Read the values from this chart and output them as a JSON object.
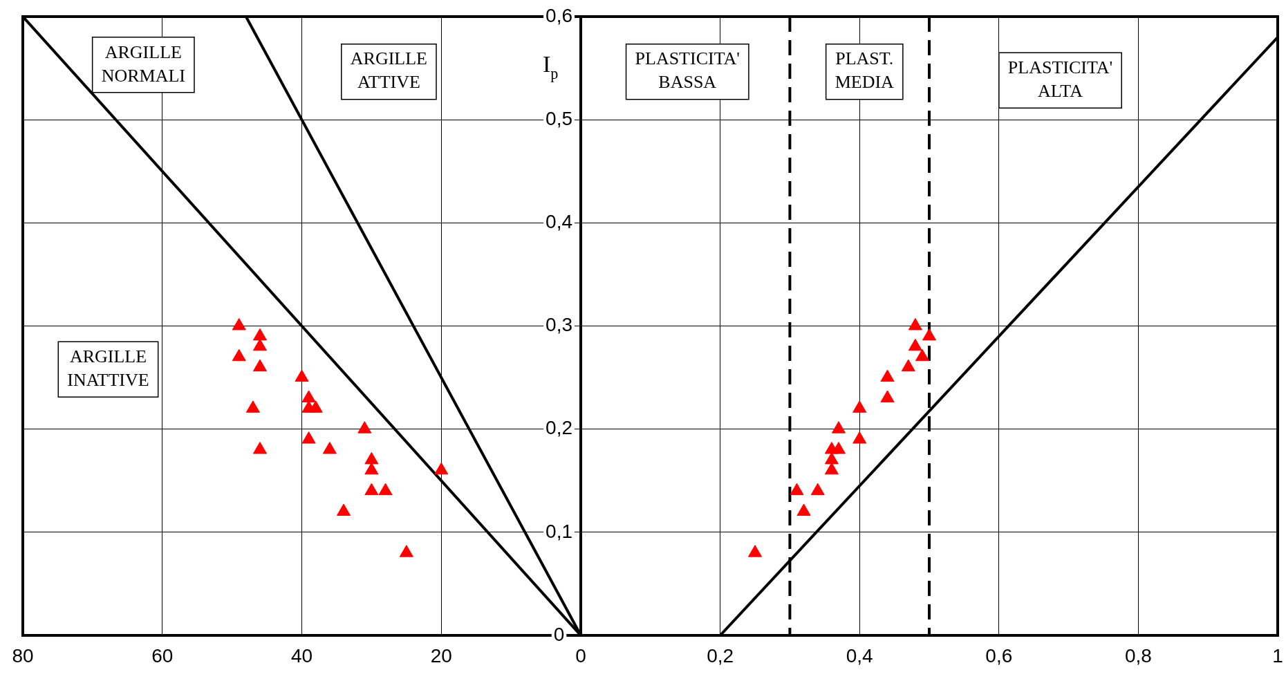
{
  "chart_data": [
    {
      "type": "scatter",
      "xlim": [
        80,
        0
      ],
      "xticks": [
        80,
        60,
        40,
        20,
        0
      ],
      "ylim": [
        0,
        0.6
      ],
      "yticks": [
        0,
        0.1,
        0.2,
        0.3,
        0.4,
        0.5,
        0.6
      ],
      "grid": true,
      "tick_labels": "x",
      "marker": "triangle",
      "series": [
        {
          "color": "#ff0000",
          "x": [
            49,
            49,
            46,
            46,
            46,
            47,
            46,
            40,
            39,
            39,
            38,
            39,
            36,
            31,
            30,
            30,
            30,
            28,
            34,
            25,
            20
          ],
          "values": [
            0.3,
            0.27,
            0.29,
            0.28,
            0.26,
            0.22,
            0.18,
            0.25,
            0.23,
            0.22,
            0.22,
            0.19,
            0.18,
            0.2,
            0.17,
            0.16,
            0.14,
            0.14,
            0.12,
            0.08,
            0.16
          ]
        },
        {
          "type": "line",
          "color": "#000000",
          "marker": "none",
          "x": [
            0,
            80
          ],
          "values": [
            0,
            0.6
          ]
        },
        {
          "type": "line",
          "color": "#000000",
          "marker": "none",
          "x": [
            0,
            48
          ],
          "values": [
            0,
            0.6
          ]
        }
      ],
      "annotations": [
        "ARGILLE\nNORMALI",
        "ARGILLE\nATTIVE",
        "ARGILLE\nINATTIVE"
      ]
    },
    {
      "type": "scatter",
      "xlim": [
        0,
        1
      ],
      "xticks": [
        {
          "value": 0,
          "label": null
        },
        {
          "value": 0.2,
          "label": "0,2"
        },
        {
          "value": 0.4,
          "label": "0,4"
        },
        {
          "value": 0.6,
          "label": "0,6"
        },
        {
          "value": 0.8,
          "label": "0,8"
        },
        1
      ],
      "ylim": [
        0,
        0.6
      ],
      "yticks": [
        0,
        {
          "value": 0.1,
          "label": "0,1"
        },
        {
          "value": 0.2,
          "label": "0,2"
        },
        {
          "value": 0.3,
          "label": "0,3"
        },
        {
          "value": 0.4,
          "label": "0,4"
        },
        {
          "value": 0.5,
          "label": "0,5"
        },
        {
          "value": 0.6,
          "label": "0,6"
        }
      ],
      "grid": true,
      "marker": "triangle",
      "ylabel": "I$_{p}$",
      "series": [
        {
          "color": "#ff0000",
          "x": [
            0.25,
            0.31,
            0.32,
            0.34,
            0.36,
            0.36,
            0.36,
            0.37,
            0.37,
            0.4,
            0.4,
            0.44,
            0.44,
            0.47,
            0.48,
            0.48,
            0.49,
            0.5
          ],
          "values": [
            0.08,
            0.14,
            0.12,
            0.14,
            0.18,
            0.17,
            0.16,
            0.18,
            0.2,
            0.22,
            0.19,
            0.25,
            0.23,
            0.26,
            0.3,
            0.28,
            0.27,
            0.29
          ]
        },
        {
          "type": "line",
          "color": "#000000",
          "marker": "none",
          "x": [
            0.2,
            1
          ],
          "values": [
            0,
            0.58
          ]
        }
      ],
      "ref_lines": [
        {
          "axis": "x",
          "value": 0.3,
          "color": "#000000",
          "line_style": "dashed"
        },
        {
          "axis": "x",
          "value": 0.5,
          "color": "#000000",
          "line_style": "dashed"
        }
      ],
      "annotations": [
        "PLASTICITA'\nBASSA",
        "PLAST.\nMEDIA",
        "PLASTICITA'\nALTA"
      ]
    }
  ]
}
